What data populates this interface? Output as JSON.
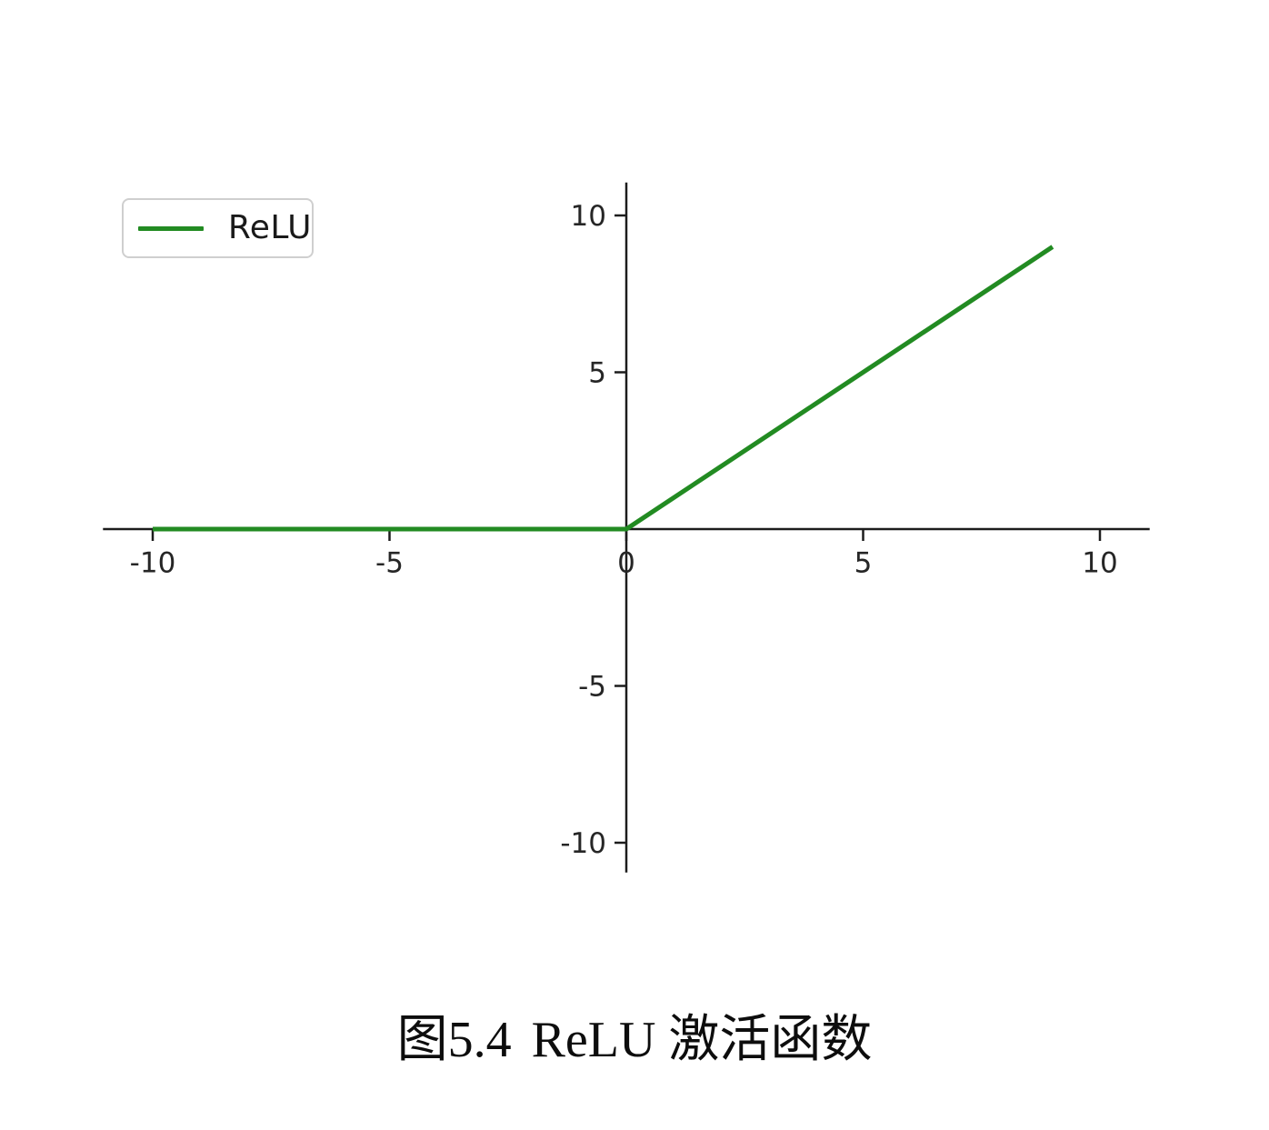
{
  "chart": {
    "legend_label": "ReLU",
    "line_color": "#228B22",
    "axis_color": "#1c1c1c",
    "tick_label_color": "#262626"
  },
  "chart_data": {
    "type": "line",
    "title": "",
    "xlabel": "",
    "ylabel": "",
    "x": [
      -10,
      -9,
      -8,
      -7,
      -6,
      -5,
      -4,
      -3,
      -2,
      -1,
      0,
      1,
      2,
      3,
      4,
      5,
      6,
      7,
      8,
      9
    ],
    "series": [
      {
        "name": "ReLU",
        "values": [
          0,
          0,
          0,
          0,
          0,
          0,
          0,
          0,
          0,
          0,
          0,
          1,
          2,
          3,
          4,
          5,
          6,
          7,
          8,
          9
        ]
      }
    ],
    "xticks": [
      -10,
      -5,
      0,
      5,
      10
    ],
    "yticks": [
      -10,
      -5,
      5,
      10
    ],
    "xlim": [
      -11.05,
      11.05
    ],
    "ylim": [
      -10.95,
      11.05
    ],
    "grid": false,
    "legend_position": "upper left",
    "axes_style": "spines-through-origin"
  },
  "caption": {
    "label": "图5.4",
    "title": "ReLU 激活函数"
  }
}
